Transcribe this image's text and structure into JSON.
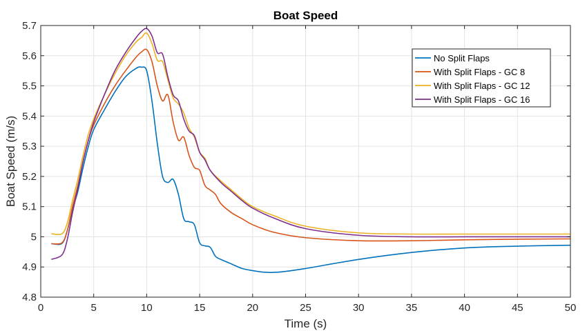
{
  "chart_data": {
    "type": "line",
    "title": "Boat Speed",
    "xlabel": "Time (s)",
    "ylabel": "Boat Speed (m/s)",
    "xlim": [
      0,
      50
    ],
    "ylim": [
      4.8,
      5.7
    ],
    "xticks": [
      0,
      5,
      10,
      15,
      20,
      25,
      30,
      35,
      40,
      45,
      50
    ],
    "yticks": [
      4.8,
      4.9,
      5,
      5.1,
      5.2,
      5.3,
      5.4,
      5.5,
      5.6,
      5.7
    ],
    "xtick_labels": [
      "0",
      "5",
      "10",
      "15",
      "20",
      "25",
      "30",
      "35",
      "40",
      "45",
      "50"
    ],
    "ytick_labels": [
      "4.8",
      "4.9",
      "5",
      "5.1",
      "5.2",
      "5.3",
      "5.4",
      "5.5",
      "5.6",
      "5.7"
    ],
    "grid": true,
    "legend_position": "top-right",
    "series": [
      {
        "name": "No Split Flaps",
        "color": "#0072BD",
        "x": [
          1,
          2,
          2.5,
          3,
          3.5,
          4,
          4.5,
          5,
          6,
          7,
          8,
          9,
          9.5,
          10,
          10.5,
          11,
          11.5,
          12,
          12.5,
          13,
          13.5,
          14,
          14.5,
          15,
          15.5,
          16,
          16.5,
          17,
          18,
          19,
          20,
          21,
          22,
          23,
          25,
          30,
          35,
          40,
          45,
          50
        ],
        "y": [
          4.977,
          4.978,
          5.02,
          5.09,
          5.15,
          5.23,
          5.3,
          5.355,
          5.42,
          5.48,
          5.53,
          5.558,
          5.562,
          5.55,
          5.45,
          5.31,
          5.2,
          5.18,
          5.19,
          5.14,
          5.06,
          5.05,
          5.04,
          4.98,
          4.97,
          4.965,
          4.935,
          4.925,
          4.91,
          4.895,
          4.888,
          4.883,
          4.882,
          4.885,
          4.895,
          4.925,
          4.948,
          4.963,
          4.969,
          4.972
        ]
      },
      {
        "name": "With Split Flaps - GC 8",
        "color": "#D95319",
        "x": [
          1,
          2,
          2.5,
          3,
          3.5,
          4,
          4.5,
          5,
          6,
          7,
          8,
          9,
          9.5,
          10,
          10.5,
          11,
          11.5,
          12,
          12.5,
          13,
          13.5,
          14,
          14.5,
          15,
          15.5,
          16,
          16.5,
          17,
          18,
          19,
          20,
          22,
          25,
          30,
          35,
          40,
          45,
          50
        ],
        "y": [
          4.977,
          4.98,
          5.02,
          5.1,
          5.17,
          5.25,
          5.32,
          5.37,
          5.44,
          5.5,
          5.55,
          5.595,
          5.612,
          5.62,
          5.58,
          5.5,
          5.45,
          5.47,
          5.38,
          5.32,
          5.33,
          5.27,
          5.23,
          5.22,
          5.17,
          5.155,
          5.14,
          5.11,
          5.08,
          5.06,
          5.04,
          5.015,
          4.997,
          4.987,
          4.987,
          4.99,
          4.992,
          4.993
        ]
      },
      {
        "name": "With Split Flaps - GC 12",
        "color": "#EDB120",
        "x": [
          1,
          2,
          2.5,
          3,
          3.5,
          4,
          4.5,
          5,
          6,
          7,
          8,
          9,
          9.5,
          10,
          10.5,
          11,
          11.5,
          12,
          12.5,
          13,
          13.5,
          14,
          14.5,
          15,
          15.5,
          16,
          17,
          18,
          19,
          20,
          22,
          25,
          30,
          35,
          40,
          45,
          50
        ],
        "y": [
          5.01,
          5.01,
          5.045,
          5.12,
          5.19,
          5.27,
          5.34,
          5.39,
          5.47,
          5.54,
          5.6,
          5.645,
          5.66,
          5.675,
          5.64,
          5.585,
          5.58,
          5.52,
          5.46,
          5.44,
          5.41,
          5.36,
          5.33,
          5.28,
          5.26,
          5.22,
          5.185,
          5.155,
          5.125,
          5.1,
          5.07,
          5.035,
          5.013,
          5.009,
          5.009,
          5.009,
          5.009
        ]
      },
      {
        "name": "With Split Flaps - GC 16",
        "color": "#7E2F8E",
        "x": [
          1,
          2,
          2.5,
          3,
          3.5,
          4,
          4.5,
          5,
          6,
          7,
          8,
          9,
          9.5,
          10,
          10.5,
          11,
          11.5,
          12,
          12.5,
          13,
          13.5,
          14,
          14.5,
          15,
          15.5,
          16,
          17,
          18,
          19,
          20,
          22,
          25,
          30,
          35,
          40,
          45,
          50
        ],
        "y": [
          4.925,
          4.94,
          4.99,
          5.08,
          5.16,
          5.25,
          5.32,
          5.38,
          5.47,
          5.55,
          5.61,
          5.66,
          5.68,
          5.69,
          5.665,
          5.61,
          5.605,
          5.53,
          5.47,
          5.45,
          5.39,
          5.35,
          5.335,
          5.28,
          5.255,
          5.22,
          5.18,
          5.15,
          5.12,
          5.095,
          5.062,
          5.027,
          5.005,
          5,
          5,
          5,
          5
        ]
      }
    ]
  }
}
